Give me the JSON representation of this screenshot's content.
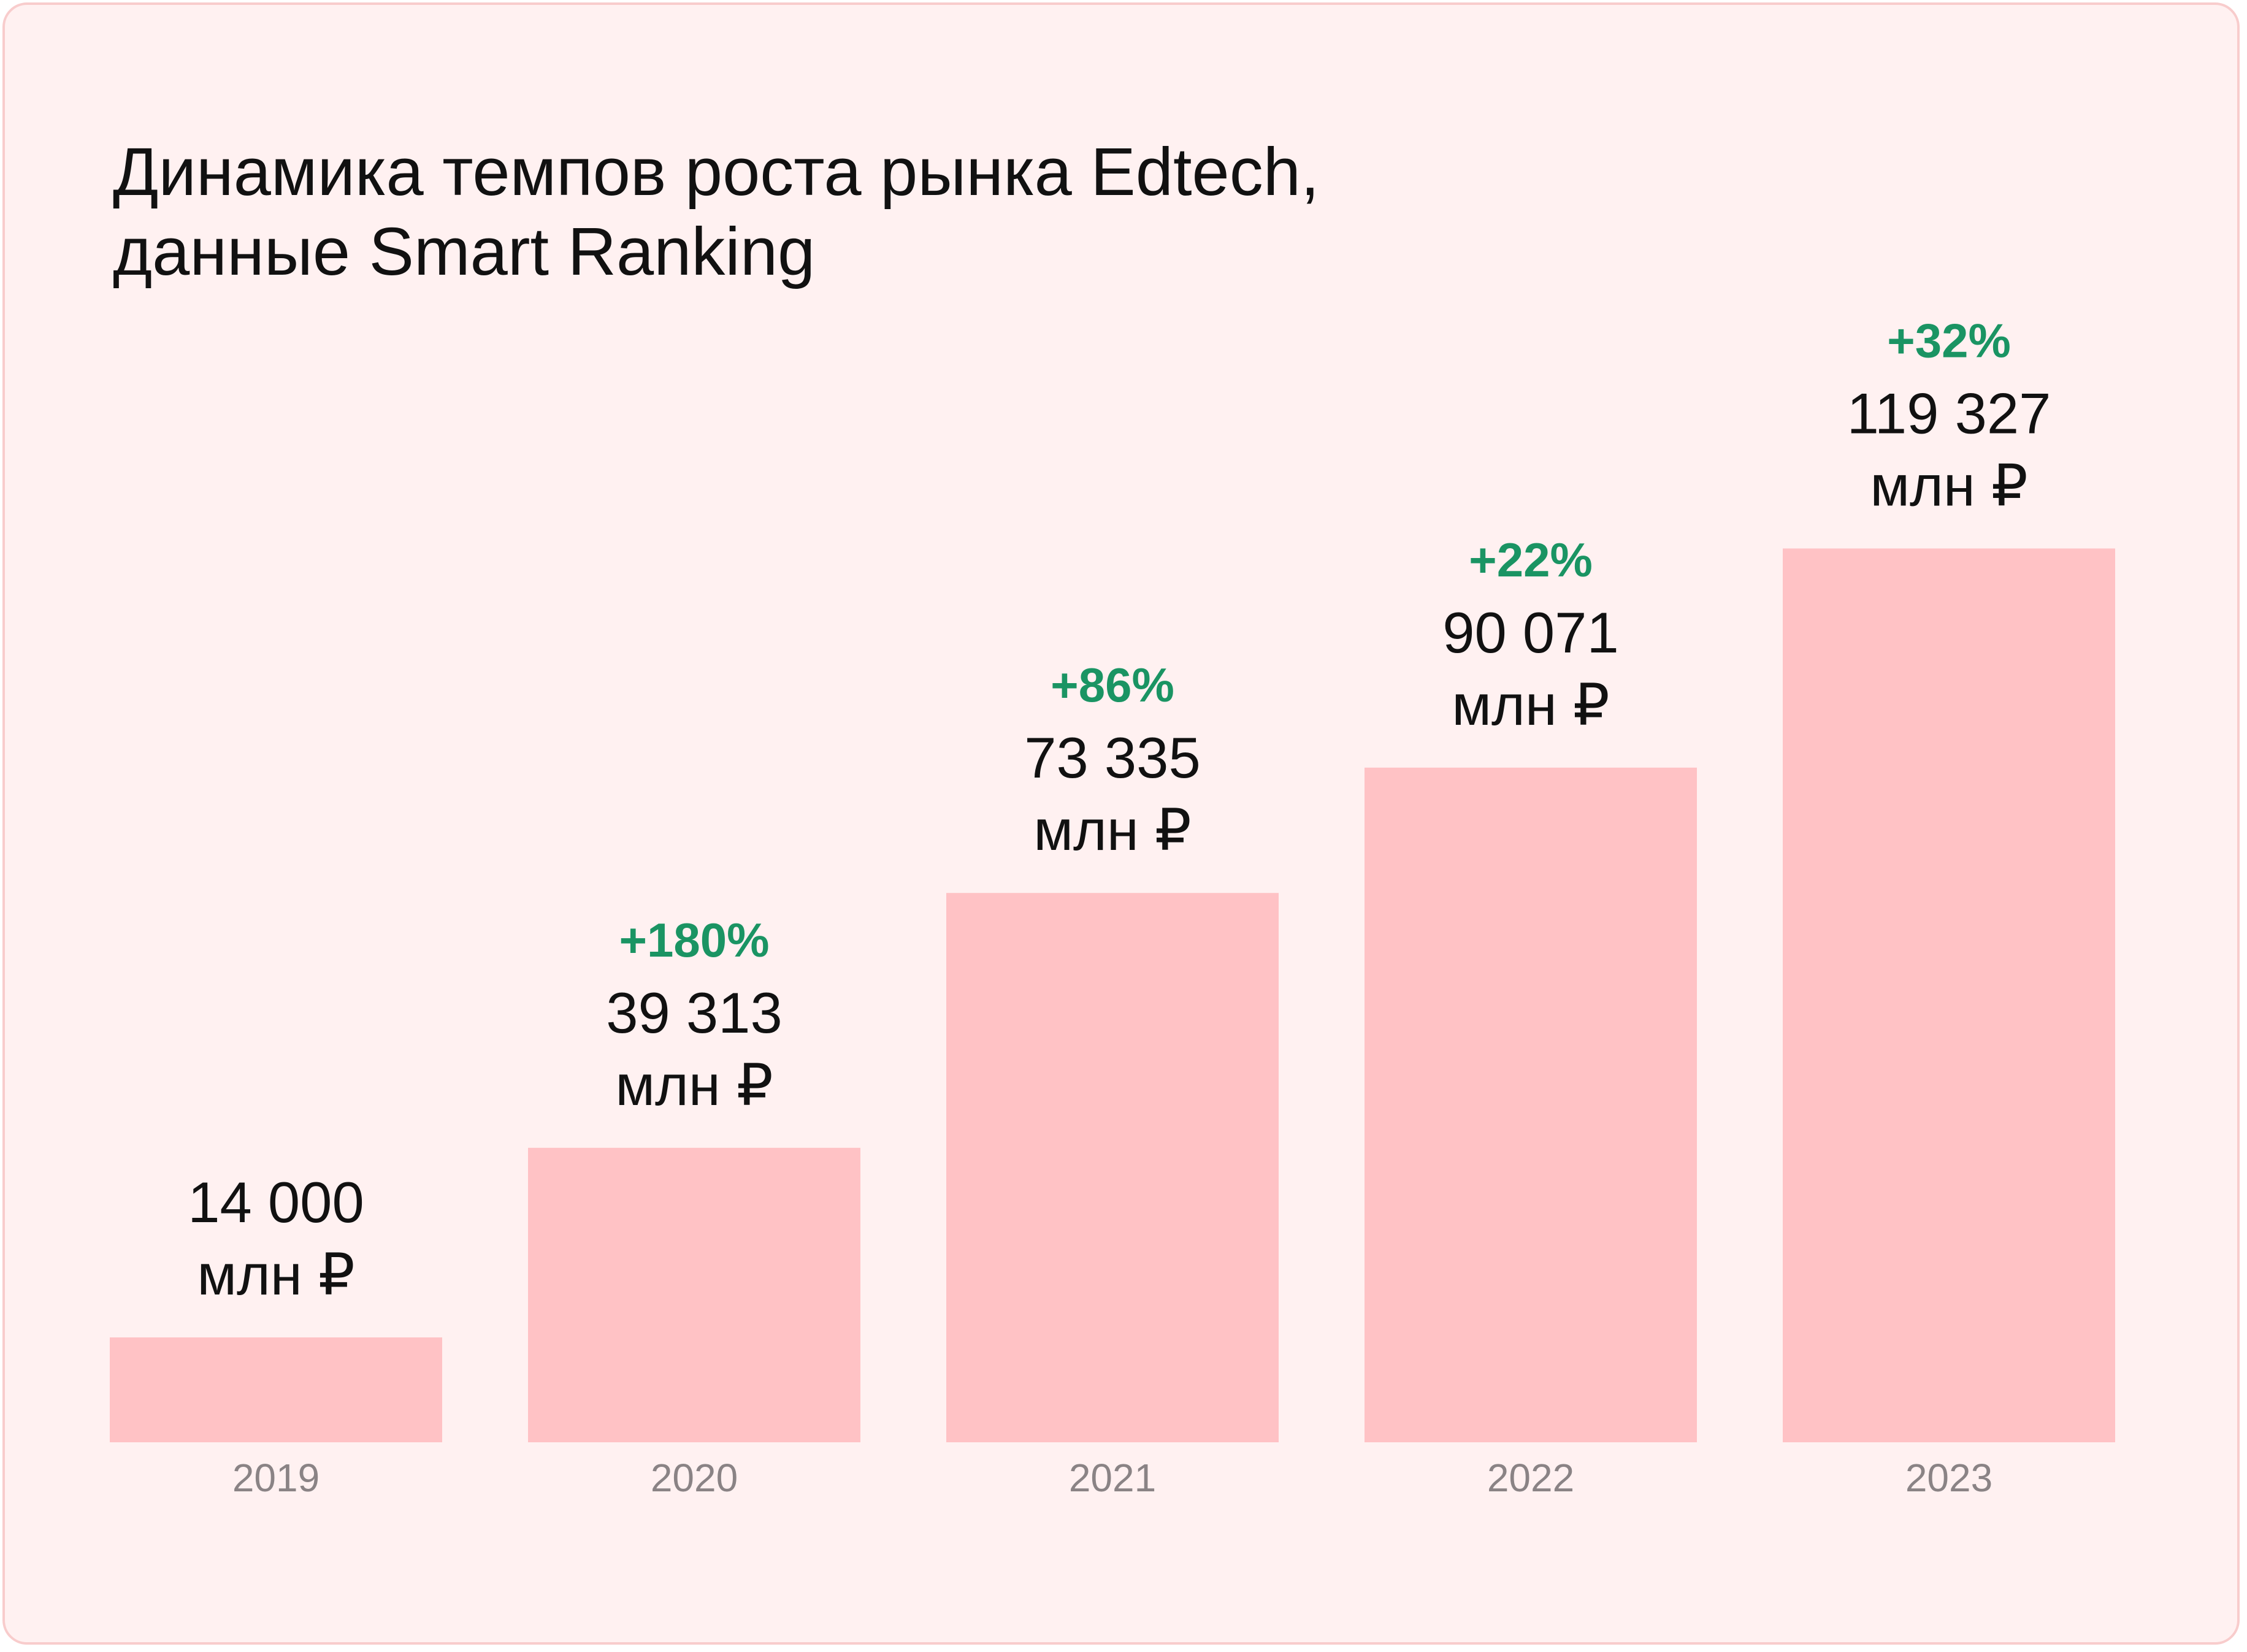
{
  "card": {
    "title_lines": [
      "Динамика темпов роста рынка Edtech,",
      "данные Smart Ranking"
    ]
  },
  "colors": {
    "background": "#fff1f1",
    "border": "#f8cccc",
    "bar": "#ffc2c5",
    "value_text": "#111111",
    "growth_text": "#1a9463",
    "tick_text": "#8a8385"
  },
  "chart_data": {
    "type": "bar",
    "title": "Динамика темпов роста рынка Edtech, данные Smart Ranking",
    "categories": [
      "2019",
      "2020",
      "2021",
      "2022",
      "2023"
    ],
    "values": [
      14000,
      39313,
      73335,
      90071,
      119327
    ],
    "value_labels": [
      "14 000",
      "39 313",
      "73 335",
      "90 071",
      "119 327"
    ],
    "unit_label": "млн ₽",
    "growth_labels": [
      "",
      "+180%",
      "+86%",
      "+22%",
      "+32%"
    ],
    "xlabel": "",
    "ylabel": "",
    "grid": false,
    "legend": "none"
  }
}
